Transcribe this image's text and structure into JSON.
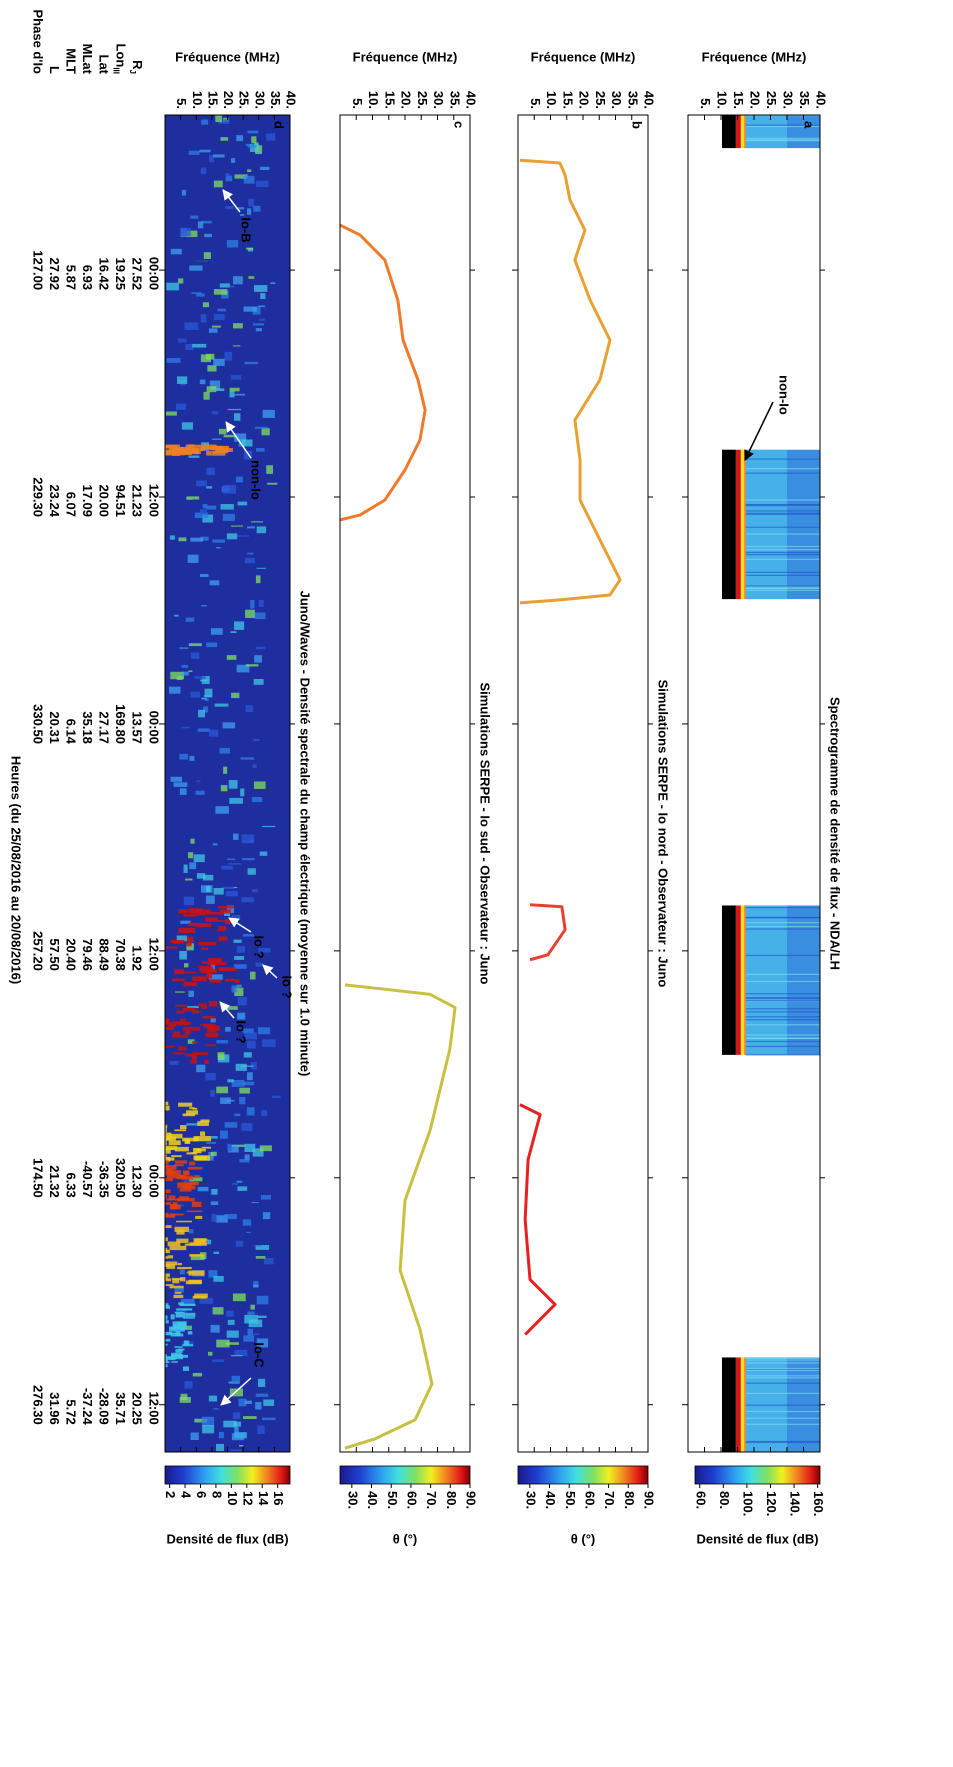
{
  "chart_data": [
    {
      "type": "heatmap",
      "title": "Spectrogramme de densité de flux - NDA/LH",
      "label": "a",
      "ylabel": "Fréquence (MHz)",
      "xlim": [
        -8.2,
        62.5
      ],
      "xticks": [
        0,
        12,
        24,
        36,
        48,
        60
      ],
      "ylim": [
        0,
        40
      ],
      "yticks": [
        {
          "value": 5,
          "label": "5."
        },
        {
          "value": 10,
          "label": "10."
        },
        {
          "value": 15,
          "label": "15."
        },
        {
          "value": 20,
          "label": "20."
        },
        {
          "value": 25,
          "label": "25."
        },
        {
          "value": 30,
          "label": "30."
        },
        {
          "value": 35,
          "label": "35."
        },
        {
          "value": 40,
          "label": "40."
        }
      ],
      "annotations": [
        "non-Io"
      ],
      "colorbar": {
        "label": "Densité de flux (dB)",
        "lim": [
          56,
          162
        ],
        "ticks": [
          {
            "value": 60,
            "label": "60."
          },
          {
            "value": 80,
            "label": "80."
          },
          {
            "value": 100,
            "label": "100."
          },
          {
            "value": 120,
            "label": "120."
          },
          {
            "value": 140,
            "label": "140."
          },
          {
            "value": 160,
            "label": "160."
          }
        ]
      }
    },
    {
      "type": "line",
      "title": "Simulations SERPE - Io nord - Observateur : Juno",
      "label": "b",
      "ylabel": "Fréquence (MHz)",
      "xlim": [
        -8.2,
        62.5
      ],
      "xticks": [
        0,
        12,
        24,
        36,
        48,
        60
      ],
      "ylim": [
        0,
        40
      ],
      "yticks": [
        {
          "value": 5,
          "label": "5."
        },
        {
          "value": 10,
          "label": "10."
        },
        {
          "value": 15,
          "label": "15."
        },
        {
          "value": 20,
          "label": "20."
        },
        {
          "value": 25,
          "label": "25."
        },
        {
          "value": 30,
          "label": "30."
        },
        {
          "value": 35,
          "label": "35."
        },
        {
          "value": 40,
          "label": "40."
        }
      ],
      "series": [
        {
          "color": "#e8a030",
          "x": [
            -5.81,
            -5.66,
            -5.02,
            -3.7,
            -2.11,
            -0.53,
            1.59,
            3.7,
            5.81,
            7.93,
            10.04,
            12.16,
            14.27,
            16.38,
            17.18,
            17.44,
            17.6
          ],
          "values": [
            0.6,
            12.9,
            14.5,
            16.0,
            20.6,
            17.5,
            22.2,
            28.3,
            25.2,
            17.5,
            19.1,
            19.1,
            25.2,
            31.4,
            28.3,
            12.9,
            0.6
          ]
        },
        {
          "color": "#e84030",
          "x": [
            33.56,
            33.67,
            34.88,
            36.21,
            36.47
          ],
          "values": [
            3.7,
            13.5,
            14.5,
            9.2,
            3.7
          ]
        },
        {
          "color": "#e82020",
          "x": [
            44.13,
            44.66,
            47.04,
            50.21,
            53.38,
            54.7,
            56.29
          ],
          "values": [
            0.6,
            6.8,
            3.1,
            2.2,
            3.7,
            11.4,
            2.2
          ]
        }
      ],
      "colorbar": {
        "label": "θ (°)",
        "lim": [
          24,
          90
        ],
        "ticks": [
          {
            "value": 30,
            "label": "30."
          },
          {
            "value": 40,
            "label": "40."
          },
          {
            "value": 50,
            "label": "50."
          },
          {
            "value": 60,
            "label": "60."
          },
          {
            "value": 70,
            "label": "70."
          },
          {
            "value": 80,
            "label": "80."
          },
          {
            "value": 90,
            "label": "90."
          }
        ]
      }
    },
    {
      "type": "line",
      "title": "Simulations SERPE - Io sud - Observateur : Juno",
      "label": "c",
      "ylabel": "Fréquence (MHz)",
      "xlim": [
        -8.2,
        62.5
      ],
      "xticks": [
        0,
        12,
        24,
        36,
        48,
        60
      ],
      "ylim": [
        0,
        40
      ],
      "yticks": [
        {
          "value": 5,
          "label": "5."
        },
        {
          "value": 10,
          "label": "10."
        },
        {
          "value": 15,
          "label": "15."
        },
        {
          "value": 20,
          "label": "20."
        },
        {
          "value": 25,
          "label": "25."
        },
        {
          "value": 30,
          "label": "30."
        },
        {
          "value": 35,
          "label": "35."
        },
        {
          "value": 40,
          "label": "40."
        }
      ],
      "series": [
        {
          "color": "#f07a2a",
          "x": [
            -2.38,
            -1.85,
            -0.53,
            1.59,
            3.7,
            5.81,
            7.4,
            8.99,
            10.57,
            12.16,
            12.95,
            13.21
          ],
          "values": [
            0,
            6.2,
            13.8,
            17.8,
            19.4,
            24.0,
            26.2,
            24.6,
            20.0,
            13.8,
            6.2,
            0
          ]
        },
        {
          "color": "#c8c040",
          "x": [
            37.8,
            38.0,
            38.3,
            39.0,
            41.2,
            45.5,
            49.2,
            52.9,
            56.0,
            58.9,
            60.8,
            61.8,
            62.3
          ],
          "values": [
            1.5,
            12.3,
            27.7,
            35.4,
            33.8,
            27.7,
            20.0,
            18.5,
            24.6,
            28.3,
            23.1,
            10.8,
            1.5
          ]
        }
      ],
      "colorbar": {
        "label": "θ (°)",
        "lim": [
          24,
          90
        ],
        "ticks": [
          {
            "value": 30,
            "label": "30."
          },
          {
            "value": 40,
            "label": "40."
          },
          {
            "value": 50,
            "label": "50."
          },
          {
            "value": 60,
            "label": "60."
          },
          {
            "value": 70,
            "label": "70."
          },
          {
            "value": 80,
            "label": "80."
          },
          {
            "value": 90,
            "label": "90."
          }
        ]
      }
    },
    {
      "type": "heatmap",
      "title": "Juno/Waves - Densité spectrale du champ électrique (moyenne sur 1.0 minute)",
      "label": "d",
      "ylabel": "Fréquence (MHz)",
      "xlabel": "Heures (du 25/08/2016 au 20/08/2016)",
      "xlim": [
        -8.2,
        62.5
      ],
      "xticks": [
        {
          "value": 0,
          "label": "00:00"
        },
        {
          "value": 12,
          "label": "12:00"
        },
        {
          "value": 24,
          "label": "00:00"
        },
        {
          "value": 36,
          "label": "12:00"
        },
        {
          "value": 48,
          "label": "00:00"
        },
        {
          "value": 60,
          "label": "12:00"
        }
      ],
      "ylim": [
        0,
        40
      ],
      "yticks": [
        {
          "value": 5,
          "label": "5."
        },
        {
          "value": 10,
          "label": "10."
        },
        {
          "value": 15,
          "label": "15."
        },
        {
          "value": 20,
          "label": "20."
        },
        {
          "value": 25,
          "label": "25."
        },
        {
          "value": 30,
          "label": "30."
        },
        {
          "value": 35,
          "label": "35."
        },
        {
          "value": 40,
          "label": "40."
        }
      ],
      "annotations": [
        "Io-B",
        "non-Io",
        "Io ?",
        "Io ?",
        "Io ?",
        "Io-C"
      ],
      "table": {
        "row_labels": [
          {
            "main": "R",
            "sub": "J"
          },
          {
            "main": "Lon",
            "sub": "III"
          },
          "Lat",
          "MLat",
          "MLT",
          "L",
          "Phase d'Io"
        ],
        "rows": [
          [
            "27.52",
            "21.23",
            "13.57",
            "1.92",
            "12.30",
            "20.25"
          ],
          [
            "19.25",
            "94.51",
            "169.80",
            "70.38",
            "320.50",
            "35.71"
          ],
          [
            "16.42",
            "20.00",
            "27.17",
            "88.49",
            "-36.35",
            "-28.09"
          ],
          [
            "6.93",
            "17.09",
            "35.18",
            "79.46",
            "-40.57",
            "-37.24"
          ],
          [
            "5.87",
            "6.07",
            "6.14",
            "20.40",
            "6.33",
            "5.72"
          ],
          [
            "27.92",
            "23.24",
            "20.31",
            "57.50",
            "21.32",
            "31.96"
          ],
          [
            "127.00",
            "229.30",
            "330.50",
            "257.20",
            "174.50",
            "276.30"
          ]
        ]
      },
      "colorbar": {
        "label": "Densité de flux (dB)",
        "lim": [
          1.4,
          17.6
        ],
        "ticks": [
          2,
          4,
          6,
          8,
          10,
          12,
          14,
          16
        ]
      }
    }
  ]
}
